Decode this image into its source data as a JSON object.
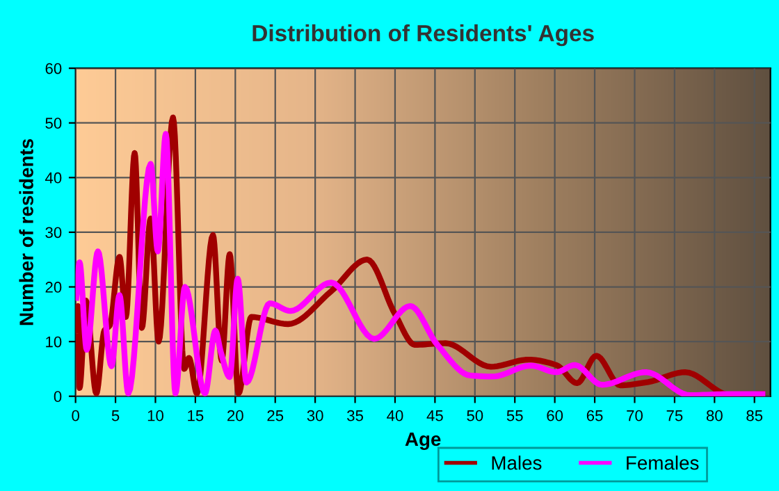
{
  "chart_data": {
    "type": "line",
    "title": "Distribution of Residents' Ages",
    "xlabel": "Age",
    "ylabel": "Number of residents",
    "xlim": [
      0,
      87
    ],
    "xticks": [
      0,
      5,
      10,
      15,
      20,
      25,
      30,
      35,
      40,
      45,
      50,
      55,
      60,
      65,
      70,
      75,
      80,
      85
    ],
    "ylim": [
      0,
      60
    ],
    "yticks": [
      0,
      10,
      20,
      30,
      40,
      50,
      60
    ],
    "grid": true,
    "legend": "bottom",
    "marker": "none",
    "line_style": "solid",
    "series": [
      {
        "name": "Males",
        "color": "#a00000",
        "x": [
          0.1,
          0.3,
          0.5,
          1.3,
          2.6,
          3.6,
          4.3,
          5.5,
          6.3,
          7.4,
          8.3,
          9.4,
          10.4,
          12.2,
          13.6,
          14.2,
          15.2,
          17.2,
          18.3,
          19.3,
          20.4,
          22,
          26.6,
          32,
          36.5,
          40,
          42.5,
          46.3,
          52,
          56.7,
          60.2,
          62.8,
          65.2,
          68.2,
          71.7,
          76.3,
          82,
          86
        ],
        "values": [
          12,
          16.5,
          1.5,
          17.5,
          0.5,
          12,
          13,
          25.5,
          14.5,
          44.5,
          12.5,
          32.5,
          10,
          51,
          5,
          7,
          0.5,
          29.5,
          6.5,
          26,
          0.5,
          14.5,
          13.2,
          19.2,
          25,
          15,
          9.4,
          9.7,
          5.4,
          6.7,
          5.7,
          2.4,
          7.4,
          2,
          2.6,
          4.4,
          0.2,
          0.4
        ]
      },
      {
        "name": "Females",
        "color": "#ff00ff",
        "x": [
          0.1,
          0.5,
          1.4,
          2.8,
          4.5,
          5.5,
          6.6,
          9.4,
          10.3,
          11.3,
          12.5,
          13.7,
          16.2,
          17.5,
          18.2,
          19.3,
          20.3,
          21.4,
          24.3,
          26.9,
          32,
          37.4,
          41.9,
          45.3,
          49.4,
          52.2,
          57,
          60.2,
          62.5,
          65.9,
          71.4,
          76.9,
          82,
          86
        ],
        "values": [
          18,
          24.5,
          8.5,
          26.5,
          5.5,
          18.5,
          0.5,
          42.5,
          26.5,
          48,
          0.5,
          20,
          0.5,
          12,
          8,
          3.5,
          21.5,
          2.5,
          17,
          15.6,
          20.8,
          10.5,
          16.5,
          9.4,
          3.8,
          3.6,
          5.6,
          4.4,
          5.7,
          2.1,
          4.4,
          0.2,
          0.4,
          0.4
        ]
      }
    ]
  }
}
